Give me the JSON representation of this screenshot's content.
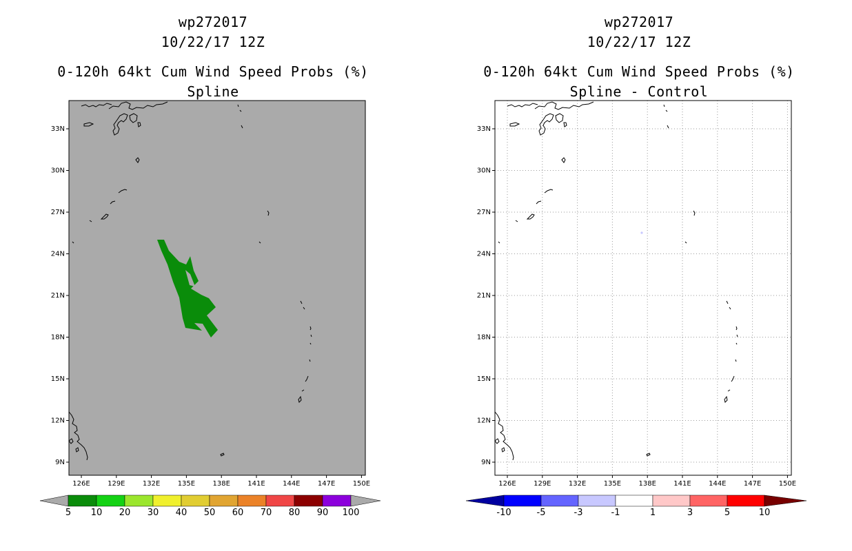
{
  "panels": [
    {
      "id": "spline",
      "storm": "wp272017",
      "datetime": "10/22/17 12Z",
      "product": "0-120h 64kt Cum Wind Speed Probs (%)",
      "subtitle": "Spline",
      "background": "#aaaaaa",
      "grid": false
    },
    {
      "id": "diff",
      "storm": "wp272017",
      "datetime": "10/22/17 12Z",
      "product": "0-120h 64kt Cum Wind Speed Probs (%)",
      "subtitle": "Spline - Control",
      "background": "#ffffff",
      "grid": true
    }
  ],
  "axes": {
    "lat_labels": [
      "33N",
      "30N",
      "27N",
      "24N",
      "21N",
      "18N",
      "15N",
      "12N",
      "9N"
    ],
    "lon_labels": [
      "126E",
      "129E",
      "132E",
      "135E",
      "138E",
      "141E",
      "144E",
      "147E",
      "150E"
    ]
  },
  "colorbar_left": {
    "labels": [
      "5",
      "10",
      "20",
      "30",
      "40",
      "50",
      "60",
      "70",
      "80",
      "90",
      "100"
    ],
    "colors": [
      "#0a8c0a",
      "#14d214",
      "#9be62d",
      "#f0f02d",
      "#e1cd32",
      "#e1a532",
      "#eb8228",
      "#f04646",
      "#8c0000",
      "#8c00dc"
    ],
    "end_color": "#aaaaaa"
  },
  "colorbar_right": {
    "labels": [
      "-10",
      "-5",
      "-3",
      "-1",
      "1",
      "3",
      "5",
      "10"
    ],
    "colors": [
      "#0000ff",
      "#6464ff",
      "#c8c8ff",
      "#ffffff",
      "#ffc8c8",
      "#ff6464",
      "#ff0000"
    ],
    "end_low": "#0000a0",
    "end_high": "#780000"
  },
  "probability_region_color": "#0a8c0a",
  "diff_dot_color": "#c8c8ff"
}
